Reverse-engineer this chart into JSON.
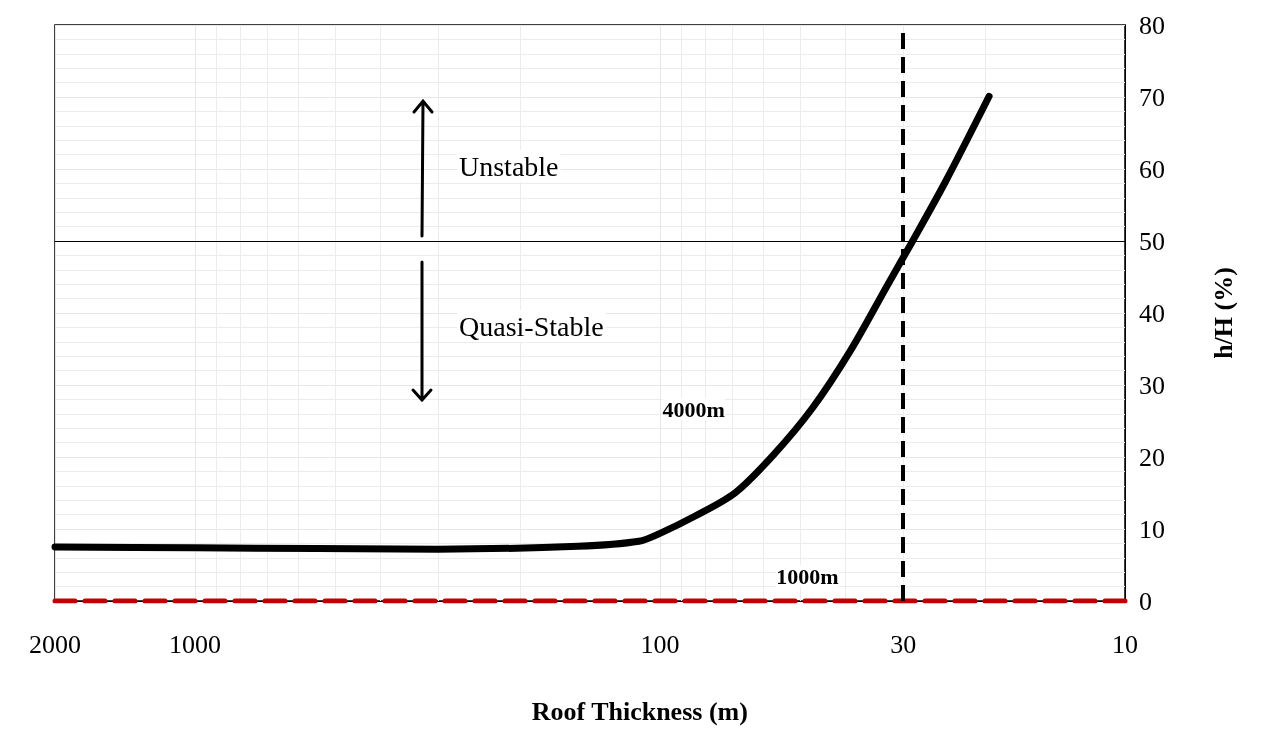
{
  "chart_data": {
    "type": "line",
    "xlabel": "Roof Thickness (m)",
    "ylabel": "h/H (%)",
    "series": [
      {
        "name": "4000m",
        "color": "#000000",
        "x": [
          2000,
          1000,
          300,
          150,
          111,
          100,
          84,
          69,
          57,
          47,
          39,
          32.4,
          28.8,
          24.3,
          19.6
        ],
        "values": [
          7.5,
          7.4,
          7.2,
          7.6,
          8.3,
          9.4,
          11.8,
          15,
          20.3,
          26.8,
          34.7,
          43.9,
          49.7,
          58.3,
          70.1
        ]
      },
      {
        "name": "1000m",
        "color": "#c00000",
        "line_style": "dashed",
        "x": [
          2000,
          1000,
          100,
          45,
          10
        ],
        "values": [
          0,
          0,
          0,
          0,
          0
        ]
      }
    ],
    "log": "x",
    "xlim": [
      2000,
      10
    ],
    "xticks": [
      2000,
      1000,
      100,
      30,
      10
    ],
    "ylim": [
      0,
      80
    ],
    "yticks": [
      0,
      10,
      20,
      30,
      40,
      50,
      60,
      70,
      80
    ],
    "grid": true,
    "legend": false,
    "line_style": "solid",
    "ref_lines": [
      {
        "axis": "y",
        "value": 50,
        "color": "#000000",
        "line_style": "solid"
      },
      {
        "axis": "x",
        "value": 30,
        "color": "#000000",
        "line_style": "dashed"
      }
    ],
    "annotations": [
      "Unstable",
      "Quasi-Stable"
    ]
  }
}
